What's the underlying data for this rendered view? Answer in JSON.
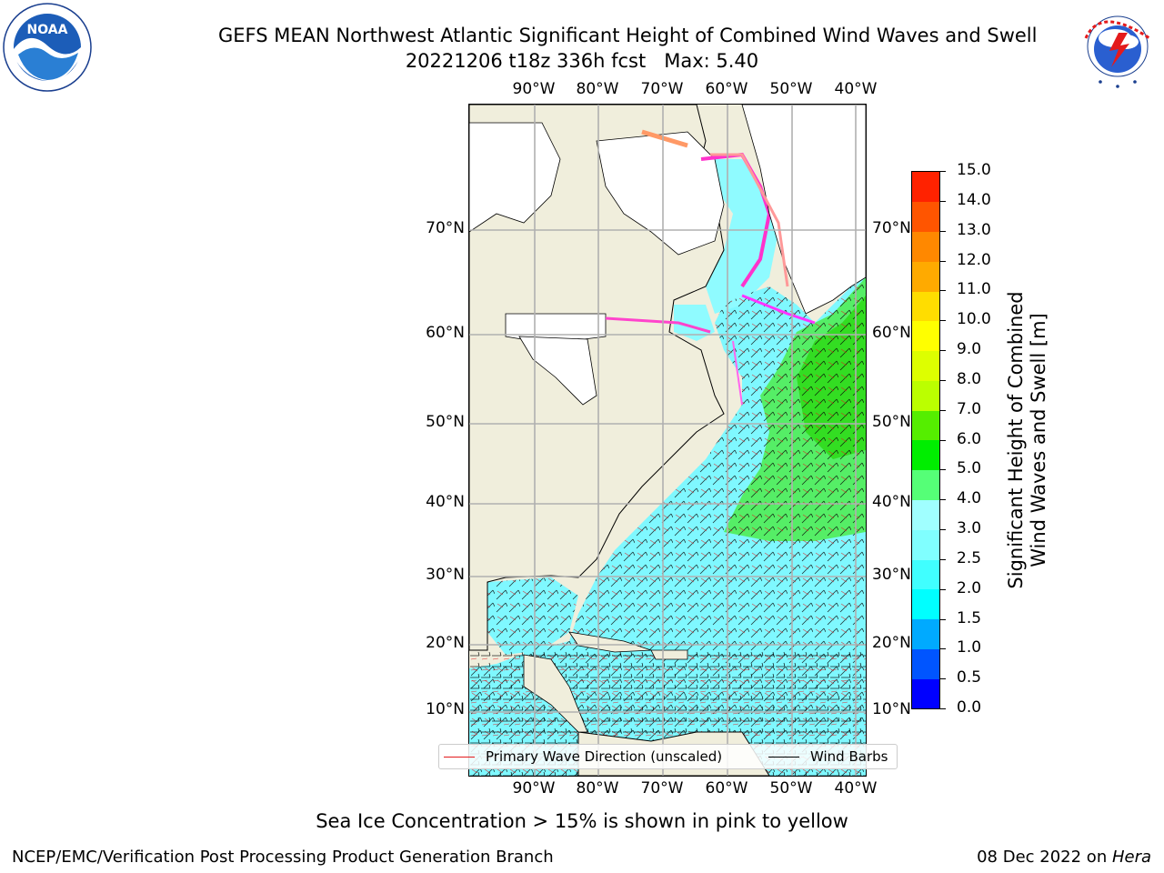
{
  "title": {
    "line1": "GEFS MEAN Northwest Atlantic Significant Height of Combined Wind Waves and Swell",
    "line2": "20221206 t18z 336h fcst   Max: 5.40"
  },
  "logos": {
    "left": {
      "text": "NOAA",
      "ring_text": "NATIONAL OCEANIC AND ATMOSPHERIC ADMINISTRATION · U.S. DEPARTMENT OF COMMERCE"
    },
    "right": {
      "ring_text": "NATIONAL WEATHER SERVICE"
    }
  },
  "map": {
    "lon_ticks": [
      "90°W",
      "80°W",
      "70°W",
      "60°W",
      "50°W",
      "40°W"
    ],
    "lat_ticks": [
      "70°N",
      "60°N",
      "50°N",
      "40°N",
      "30°N",
      "20°N",
      "10°N"
    ]
  },
  "legend": {
    "wave_label": "Primary Wave Direction (unscaled)",
    "wave_color": "#e41a1c",
    "barb_label": "Wind Barbs",
    "barb_color": "#000000"
  },
  "colorbar": {
    "label_line1": "Significant Height of Combined",
    "label_line2": "Wind Waves and Swell [m]",
    "ticks": [
      "0.0",
      "0.5",
      "1.0",
      "1.5",
      "2.0",
      "2.5",
      "3.0",
      "4.0",
      "5.0",
      "6.0",
      "7.0",
      "8.0",
      "9.0",
      "10.0",
      "11.0",
      "12.0",
      "13.0",
      "14.0",
      "15.0"
    ],
    "colors": [
      "#0000ff",
      "#0055ff",
      "#00aaff",
      "#00ffff",
      "#40ffff",
      "#80ffff",
      "#a0ffff",
      "#55ff77",
      "#00ee00",
      "#55ee00",
      "#bbff00",
      "#ddff00",
      "#ffff00",
      "#ffdd00",
      "#ffaa00",
      "#ff8800",
      "#ff5500",
      "#ff2200"
    ]
  },
  "notes": {
    "sea_ice": "Sea Ice Concentration > 15% is shown in pink to yellow",
    "credit_left": "NCEP/EMC/Verification Post Processing Product Generation Branch",
    "credit_date": "08 Dec 2022 on ",
    "credit_machine": "Hera"
  }
}
